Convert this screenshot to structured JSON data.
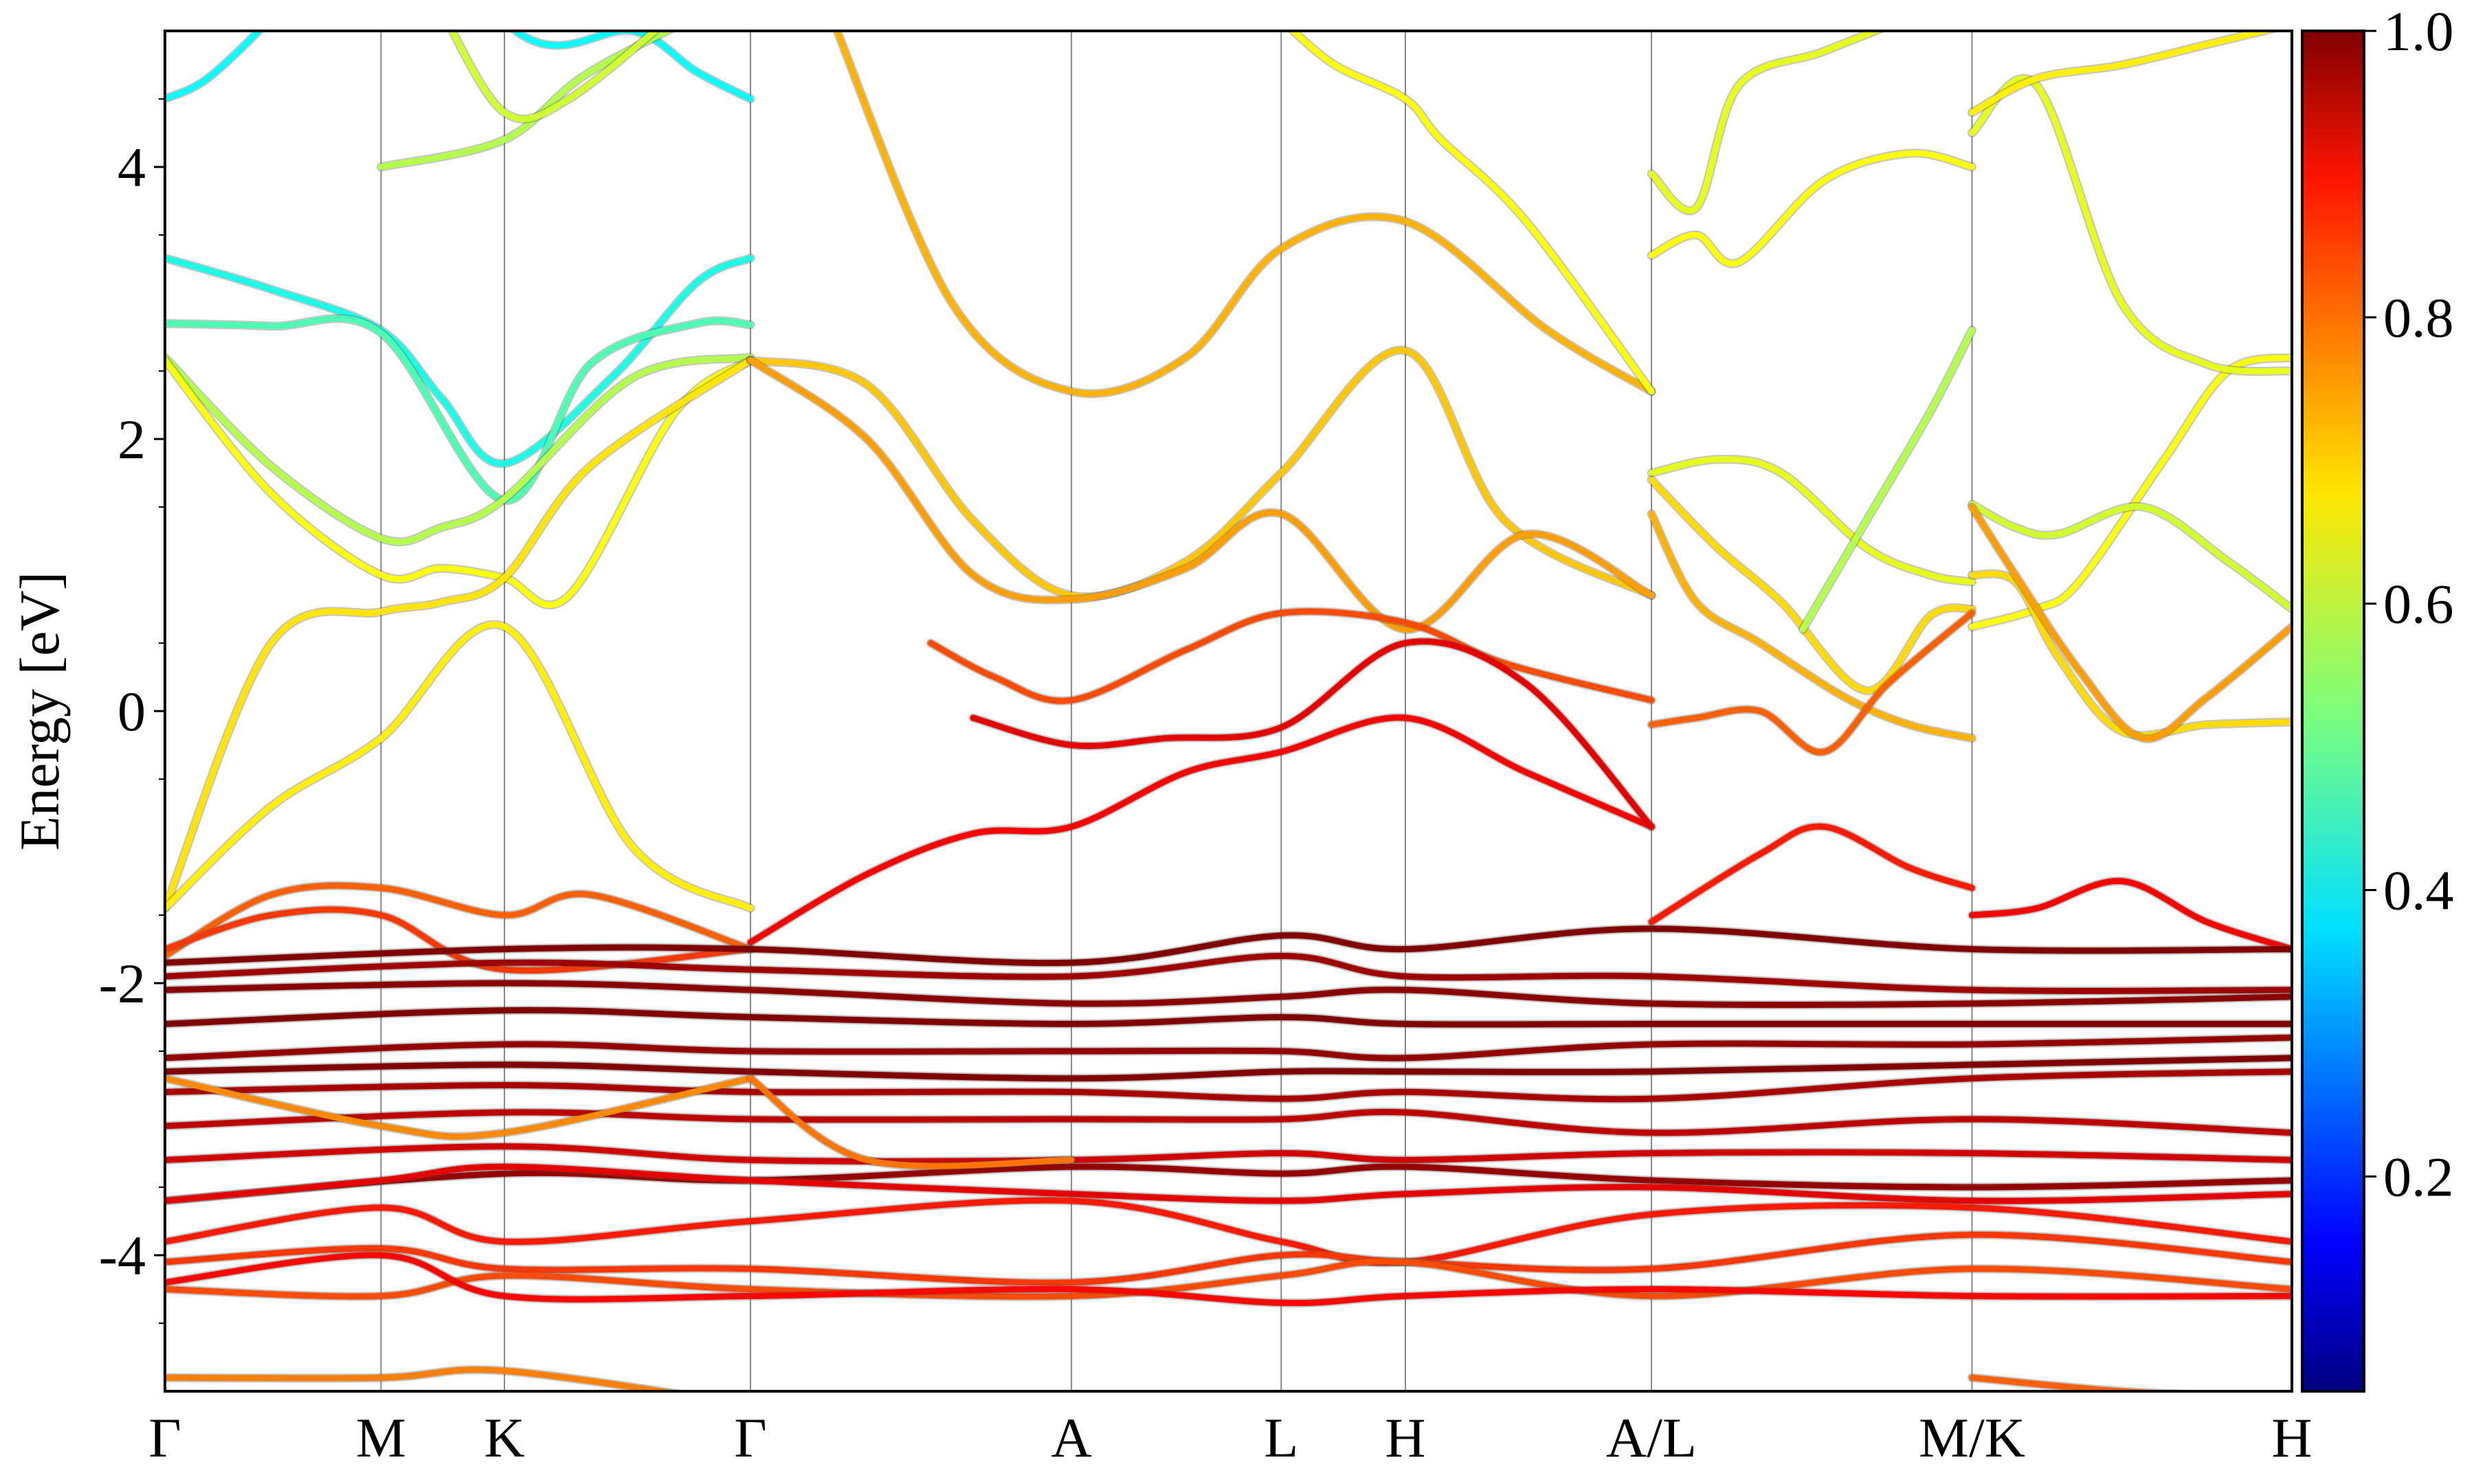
{
  "chart_data": {
    "type": "line",
    "title": "",
    "ylabel": "Energy [eV]",
    "xlabel": "",
    "ylim": [
      -5,
      5
    ],
    "x_range": [
      0,
      1
    ],
    "kpath": [
      {
        "label": "Γ",
        "x": 0.0
      },
      {
        "label": "M",
        "x": 0.1016
      },
      {
        "label": "K",
        "x": 0.1596
      },
      {
        "label": "Γ",
        "x": 0.2753
      },
      {
        "label": "A",
        "x": 0.4262
      },
      {
        "label": "L",
        "x": 0.5248
      },
      {
        "label": "H",
        "x": 0.5832
      },
      {
        "label": "A/L",
        "x": 0.6989
      },
      {
        "label": "M/K",
        "x": 0.8496
      },
      {
        "label": "H",
        "x": 1.0
      }
    ],
    "yticks": [
      "-4",
      "-2",
      "0",
      "2",
      "4"
    ],
    "colorbar": {
      "colormap": "jet",
      "range": [
        0.05,
        1.0
      ],
      "ticks": [
        "0.2",
        "0.4",
        "0.6",
        "0.8",
        "1.0"
      ]
    },
    "series": [
      {
        "c": 0.38,
        "x": [
          0.0,
          0.02,
          0.05,
          0.075,
          0.1,
          0.17,
          0.22,
          0.25,
          0.2753
        ],
        "y": [
          4.5,
          4.65,
          5.1,
          5.6,
          6.0,
          4.95,
          5.0,
          4.7,
          4.5
        ]
      },
      {
        "c": 0.4,
        "x": [
          0.0,
          0.05,
          0.1016,
          0.13,
          0.1596,
          0.21,
          0.25,
          0.2753
        ],
        "y": [
          3.33,
          3.1,
          2.8,
          2.3,
          1.82,
          2.45,
          3.15,
          3.33
        ]
      },
      {
        "c": 0.45,
        "x": [
          0.0,
          0.05,
          0.1016,
          0.1596,
          0.2,
          0.25,
          0.2753
        ],
        "y": [
          2.85,
          2.83,
          2.78,
          1.55,
          2.55,
          2.85,
          2.84
        ]
      },
      {
        "c": 0.55,
        "x": [
          0.0,
          0.05,
          0.1016,
          0.13,
          0.1596,
          0.22,
          0.2753
        ],
        "y": [
          2.6,
          1.8,
          1.27,
          1.35,
          1.56,
          2.45,
          2.6
        ]
      },
      {
        "c": 0.62,
        "x": [
          0.0,
          0.05,
          0.1016,
          0.13,
          0.1596,
          0.19,
          0.24,
          0.2753
        ],
        "y": [
          2.58,
          1.6,
          1.0,
          1.05,
          0.98,
          0.85,
          2.2,
          2.58
        ]
      },
      {
        "c": 0.65,
        "x": [
          0.0,
          0.05,
          0.1016,
          0.13,
          0.1596,
          0.2,
          0.2753
        ],
        "y": [
          -1.45,
          0.5,
          0.73,
          0.8,
          0.98,
          1.8,
          2.58
        ]
      },
      {
        "c": 0.64,
        "x": [
          0.0,
          0.05,
          0.1016,
          0.1596,
          0.22,
          0.2753
        ],
        "y": [
          -1.45,
          -0.7,
          -0.2,
          0.62,
          -1.0,
          -1.45
        ]
      },
      {
        "c": 0.55,
        "x": [
          0.1016,
          0.1596,
          0.2,
          0.2753
        ],
        "y": [
          4.0,
          4.2,
          4.7,
          5.3
        ]
      },
      {
        "c": 0.58,
        "x": [
          0.1316,
          0.1596,
          0.19,
          0.2453
        ],
        "y": [
          5.1,
          4.4,
          4.5,
          5.2
        ]
      },
      {
        "c": 0.7,
        "x": [
          0.3135,
          0.37,
          0.4262,
          0.48,
          0.5248,
          0.5832,
          0.65,
          0.6989
        ],
        "y": [
          5.1,
          3.0,
          2.35,
          2.6,
          3.4,
          3.6,
          2.8,
          2.35
        ]
      },
      {
        "c": 0.62,
        "x": [
          0.527,
          0.55,
          0.5832,
          0.6,
          0.64,
          0.6989
        ],
        "y": [
          5.05,
          4.75,
          4.5,
          4.2,
          3.6,
          2.35
        ]
      },
      {
        "c": 0.68,
        "x": [
          0.2753,
          0.33,
          0.38,
          0.4262,
          0.48,
          0.5248,
          0.5832,
          0.63,
          0.6989
        ],
        "y": [
          2.58,
          2.4,
          1.4,
          0.85,
          1.1,
          1.75,
          2.65,
          1.4,
          0.85
        ]
      },
      {
        "c": 0.72,
        "x": [
          0.2753,
          0.33,
          0.38,
          0.4262,
          0.48,
          0.5248,
          0.5832,
          0.64,
          0.6989
        ],
        "y": [
          2.58,
          2.0,
          1.0,
          0.82,
          1.05,
          1.45,
          0.6,
          1.3,
          0.85
        ]
      },
      {
        "c": 0.8,
        "x": [
          0.36,
          0.39,
          0.4262,
          0.48,
          0.5248,
          0.5832,
          0.63,
          0.6989
        ],
        "y": [
          0.5,
          0.25,
          0.08,
          0.45,
          0.72,
          0.65,
          0.35,
          0.08
        ]
      },
      {
        "c": 0.88,
        "x": [
          0.2753,
          0.33,
          0.38,
          0.4262,
          0.48,
          0.5248,
          0.5832,
          0.64,
          0.6989
        ],
        "y": [
          -1.7,
          -1.2,
          -0.9,
          -0.85,
          -0.45,
          -0.3,
          -0.05,
          -0.45,
          -0.85
        ]
      },
      {
        "c": 0.9,
        "x": [
          0.38,
          0.4262,
          0.47,
          0.5248,
          0.5832,
          0.64,
          0.6989
        ],
        "y": [
          -0.05,
          -0.25,
          -0.2,
          -0.12,
          0.5,
          0.2,
          -0.85
        ]
      },
      {
        "c": 0.6,
        "x": [
          0.6989,
          0.73,
          0.76,
          0.8,
          0.83,
          0.8496
        ],
        "y": [
          1.75,
          1.85,
          1.75,
          1.2,
          1.0,
          0.95
        ]
      },
      {
        "c": 0.66,
        "x": [
          0.6989,
          0.73,
          0.76,
          0.8,
          0.83,
          0.8496
        ],
        "y": [
          1.7,
          1.2,
          0.8,
          0.15,
          0.7,
          0.75
        ]
      },
      {
        "c": 0.7,
        "x": [
          0.6989,
          0.72,
          0.75,
          0.79,
          0.82,
          0.8496
        ],
        "y": [
          1.45,
          0.8,
          0.5,
          0.1,
          -0.1,
          -0.2
        ]
      },
      {
        "c": 0.78,
        "x": [
          0.6989,
          0.72,
          0.75,
          0.78,
          0.81,
          0.8496
        ],
        "y": [
          -0.1,
          -0.05,
          0.0,
          -0.3,
          0.2,
          0.72
        ]
      },
      {
        "c": 0.55,
        "x": [
          0.77,
          0.8,
          0.83,
          0.8496
        ],
        "y": [
          0.6,
          1.4,
          2.2,
          2.8
        ]
      },
      {
        "c": 0.62,
        "x": [
          0.6989,
          0.72,
          0.74,
          0.78,
          0.82,
          0.8496
        ],
        "y": [
          3.35,
          3.5,
          3.3,
          3.9,
          4.1,
          4.0
        ]
      },
      {
        "c": 0.6,
        "x": [
          0.6989,
          0.72,
          0.74,
          0.78,
          0.82,
          0.8496
        ],
        "y": [
          3.95,
          3.7,
          4.6,
          4.85,
          5.1,
          5.3
        ]
      },
      {
        "c": 0.85,
        "x": [
          0.6989,
          0.75,
          0.78,
          0.82,
          0.8496
        ],
        "y": [
          -1.55,
          -1.05,
          -0.85,
          -1.15,
          -1.3
        ]
      },
      {
        "c": 0.62,
        "x": [
          0.8496,
          0.88,
          0.9,
          0.94,
          0.97,
          1.0
        ],
        "y": [
          0.62,
          0.75,
          0.95,
          1.85,
          2.5,
          2.6
        ]
      },
      {
        "c": 0.58,
        "x": [
          0.8496,
          0.87,
          0.89,
          0.93,
          0.97,
          1.0
        ],
        "y": [
          1.52,
          1.35,
          1.3,
          1.5,
          1.1,
          0.75
        ]
      },
      {
        "c": 0.66,
        "x": [
          0.8496,
          0.87,
          0.89,
          0.92,
          0.96,
          1.0
        ],
        "y": [
          1.0,
          0.95,
          0.4,
          -0.15,
          -0.1,
          -0.08
        ]
      },
      {
        "c": 0.72,
        "x": [
          0.8496,
          0.87,
          0.9,
          0.93,
          0.96,
          1.0
        ],
        "y": [
          1.5,
          1.0,
          0.3,
          -0.2,
          0.1,
          0.62
        ]
      },
      {
        "c": 0.6,
        "x": [
          0.8496,
          0.88,
          0.92,
          0.96,
          1.0
        ],
        "y": [
          4.25,
          4.6,
          3.0,
          2.55,
          2.5
        ]
      },
      {
        "c": 0.64,
        "x": [
          0.8496,
          0.88,
          0.92,
          0.96,
          1.0
        ],
        "y": [
          4.4,
          4.65,
          4.75,
          4.9,
          5.05
        ]
      },
      {
        "c": 0.88,
        "x": [
          0.8496,
          0.88,
          0.92,
          0.96,
          1.0
        ],
        "y": [
          -1.5,
          -1.45,
          -1.25,
          -1.55,
          -1.75
        ]
      },
      {
        "c": 0.78,
        "x": [
          0.0,
          0.05,
          0.1016,
          0.1596,
          0.2,
          0.2753
        ],
        "y": [
          -1.8,
          -1.35,
          -1.3,
          -1.5,
          -1.35,
          -1.75
        ]
      },
      {
        "c": 0.82,
        "x": [
          0.0,
          0.05,
          0.1016,
          0.1596,
          0.2753
        ],
        "y": [
          -1.75,
          -1.5,
          -1.5,
          -1.9,
          -1.75
        ]
      },
      {
        "c": 1.0,
        "x": [
          0.0,
          0.1596,
          0.2753,
          0.4262,
          0.5248,
          0.5832,
          0.6989,
          0.8496,
          1.0
        ],
        "y": [
          -1.85,
          -1.75,
          -1.75,
          -1.85,
          -1.65,
          -1.75,
          -1.6,
          -1.75,
          -1.75
        ]
      },
      {
        "c": 0.97,
        "x": [
          0.0,
          0.1596,
          0.2753,
          0.4262,
          0.5248,
          0.5832,
          0.6989,
          0.8496,
          1.0
        ],
        "y": [
          -1.95,
          -1.85,
          -1.9,
          -1.95,
          -1.8,
          -1.95,
          -1.95,
          -2.05,
          -2.05
        ]
      },
      {
        "c": 0.99,
        "x": [
          0.0,
          0.1596,
          0.2753,
          0.4262,
          0.5248,
          0.5832,
          0.6989,
          0.8496,
          1.0
        ],
        "y": [
          -2.05,
          -2.0,
          -2.05,
          -2.15,
          -2.1,
          -2.05,
          -2.15,
          -2.15,
          -2.1
        ]
      },
      {
        "c": 1.0,
        "x": [
          0.0,
          0.1596,
          0.2753,
          0.4262,
          0.5248,
          0.5832,
          0.6989,
          0.8496,
          1.0
        ],
        "y": [
          -2.3,
          -2.2,
          -2.25,
          -2.3,
          -2.25,
          -2.3,
          -2.3,
          -2.3,
          -2.3
        ]
      },
      {
        "c": 0.98,
        "x": [
          0.0,
          0.1596,
          0.2753,
          0.4262,
          0.5248,
          0.5832,
          0.6989,
          0.8496,
          1.0
        ],
        "y": [
          -2.55,
          -2.45,
          -2.5,
          -2.5,
          -2.5,
          -2.55,
          -2.45,
          -2.45,
          -2.4
        ]
      },
      {
        "c": 1.0,
        "x": [
          0.0,
          0.1596,
          0.2753,
          0.4262,
          0.5248,
          0.5832,
          0.6989,
          0.8496,
          1.0
        ],
        "y": [
          -2.65,
          -2.6,
          -2.65,
          -2.7,
          -2.65,
          -2.65,
          -2.65,
          -2.6,
          -2.55
        ]
      },
      {
        "c": 0.96,
        "x": [
          0.0,
          0.1596,
          0.2753,
          0.4262,
          0.5248,
          0.5832,
          0.6989,
          0.8496,
          1.0
        ],
        "y": [
          -2.8,
          -2.75,
          -2.8,
          -2.8,
          -2.85,
          -2.8,
          -2.85,
          -2.7,
          -2.65
        ]
      },
      {
        "c": 0.94,
        "x": [
          0.0,
          0.1596,
          0.2753,
          0.4262,
          0.5248,
          0.5832,
          0.6989,
          0.8496,
          1.0
        ],
        "y": [
          -3.05,
          -2.95,
          -3.0,
          -3.0,
          -3.0,
          -2.95,
          -3.1,
          -3.0,
          -3.1
        ]
      },
      {
        "c": 0.92,
        "x": [
          0.0,
          0.1596,
          0.2753,
          0.4262,
          0.5248,
          0.5832,
          0.6989,
          0.8496,
          1.0
        ],
        "y": [
          -3.3,
          -3.2,
          -3.3,
          -3.3,
          -3.25,
          -3.3,
          -3.25,
          -3.25,
          -3.3
        ]
      },
      {
        "c": 0.98,
        "x": [
          0.0,
          0.1596,
          0.2753,
          0.4262,
          0.5248,
          0.5832,
          0.6989,
          0.8496,
          1.0
        ],
        "y": [
          -3.6,
          -3.4,
          -3.45,
          -3.35,
          -3.4,
          -3.35,
          -3.45,
          -3.5,
          -3.45
        ]
      },
      {
        "c": 0.9,
        "x": [
          0.0,
          0.1016,
          0.1596,
          0.2753,
          0.4262,
          0.5248,
          0.5832,
          0.6989,
          0.8496,
          1.0
        ],
        "y": [
          -3.6,
          -3.45,
          -3.35,
          -3.45,
          -3.55,
          -3.6,
          -3.55,
          -3.5,
          -3.6,
          -3.55
        ]
      },
      {
        "c": 0.85,
        "x": [
          0.0,
          0.1016,
          0.1596,
          0.2753,
          0.4262,
          0.5248,
          0.5832,
          0.6989,
          0.8496,
          1.0
        ],
        "y": [
          -3.9,
          -3.65,
          -3.9,
          -3.75,
          -3.6,
          -3.9,
          -4.05,
          -3.7,
          -3.65,
          -3.9
        ]
      },
      {
        "c": 0.82,
        "x": [
          0.0,
          0.1016,
          0.1596,
          0.2753,
          0.4262,
          0.5248,
          0.5832,
          0.6989,
          0.8496,
          1.0
        ],
        "y": [
          -4.05,
          -3.95,
          -4.1,
          -4.1,
          -4.2,
          -4.0,
          -4.05,
          -4.1,
          -3.85,
          -4.05
        ]
      },
      {
        "c": 0.8,
        "x": [
          0.0,
          0.1016,
          0.1596,
          0.2753,
          0.4262,
          0.5248,
          0.5832,
          0.6989,
          0.8496,
          1.0
        ],
        "y": [
          -4.25,
          -4.3,
          -4.15,
          -4.25,
          -4.3,
          -4.15,
          -4.05,
          -4.3,
          -4.1,
          -4.25
        ]
      },
      {
        "c": 0.87,
        "x": [
          0.0,
          0.1016,
          0.1596,
          0.2753,
          0.4262,
          0.5248,
          0.5832,
          0.6989,
          0.8496,
          1.0
        ],
        "y": [
          -4.2,
          -4.0,
          -4.3,
          -4.3,
          -4.25,
          -4.35,
          -4.3,
          -4.25,
          -4.3,
          -4.3
        ]
      },
      {
        "c": 0.74,
        "x": [
          0.0,
          0.1016,
          0.1596,
          0.2753
        ],
        "y": [
          -2.7,
          -3.05,
          -3.1,
          -2.7
        ]
      },
      {
        "c": 0.76,
        "x": [
          0.2753,
          0.33,
          0.4262
        ],
        "y": [
          -2.7,
          -3.3,
          -3.3
        ]
      },
      {
        "c": 0.75,
        "x": [
          0.0,
          0.1016,
          0.1596,
          0.2753
        ],
        "y": [
          -4.9,
          -4.9,
          -4.85,
          -5.1
        ]
      },
      {
        "c": 0.78,
        "x": [
          0.8496,
          0.92,
          1.0
        ],
        "y": [
          -4.9,
          -5.0,
          -5.05
        ]
      }
    ]
  }
}
